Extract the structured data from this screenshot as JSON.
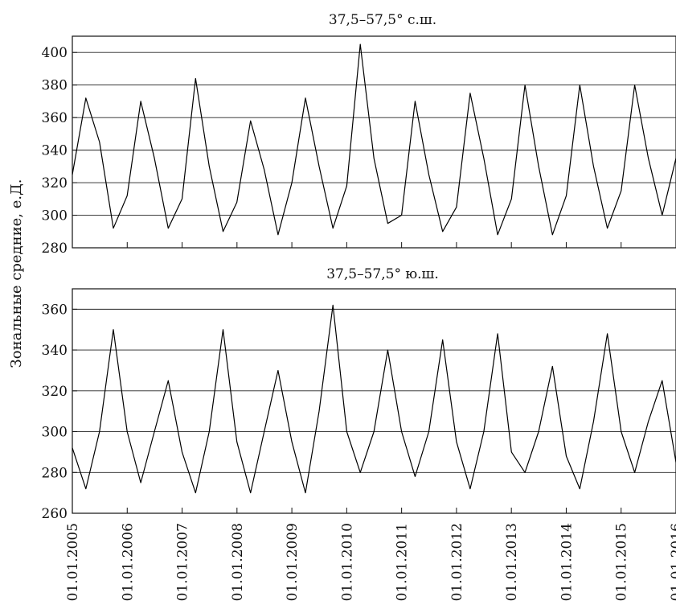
{
  "figure": {
    "ylabel": "Зональные средние, е.Д.",
    "x_tick_labels": [
      "01.01.2005",
      "01.01.2006",
      "01.01.2007",
      "01.01.2008",
      "01.01.2009",
      "01.01.2010",
      "01.01.2011",
      "01.01.2012",
      "01.01.2013",
      "01.01.2014",
      "01.01.2015",
      "01.01.2016"
    ]
  },
  "chart_data": [
    {
      "type": "line",
      "title": "37,5–57,5° с.ш.",
      "xlabel": "",
      "ylabel": "Зональные средние, е.Д.",
      "ylim": [
        280,
        410
      ],
      "xlim": [
        "2005-01-01",
        "2016-01-01"
      ],
      "y_ticks": [
        280,
        300,
        320,
        340,
        360,
        380,
        400
      ],
      "grid": "horizontal",
      "series": [
        {
          "x": [
            "2005-01-01",
            "2005-04-01",
            "2005-07-01",
            "2005-10-01",
            "2006-01-01",
            "2006-04-01",
            "2006-07-01",
            "2006-10-01",
            "2007-01-01",
            "2007-04-01",
            "2007-07-01",
            "2007-10-01",
            "2008-01-01",
            "2008-04-01",
            "2008-07-01",
            "2008-10-01",
            "2009-01-01",
            "2009-04-01",
            "2009-07-01",
            "2009-10-01",
            "2010-01-01",
            "2010-04-01",
            "2010-07-01",
            "2010-10-01",
            "2011-01-01",
            "2011-04-01",
            "2011-07-01",
            "2011-10-01",
            "2012-01-01",
            "2012-04-01",
            "2012-07-01",
            "2012-10-01",
            "2013-01-01",
            "2013-04-01",
            "2013-07-01",
            "2013-10-01",
            "2014-01-01",
            "2014-04-01",
            "2014-07-01",
            "2014-10-01",
            "2015-01-01",
            "2015-04-01",
            "2015-07-01",
            "2015-10-01",
            "2016-01-01"
          ],
          "values": [
            325,
            372,
            345,
            292,
            312,
            370,
            335,
            292,
            310,
            384,
            330,
            290,
            308,
            358,
            328,
            288,
            320,
            372,
            330,
            292,
            318,
            405,
            335,
            295,
            300,
            370,
            325,
            290,
            305,
            375,
            335,
            288,
            310,
            380,
            330,
            288,
            312,
            380,
            330,
            292,
            315,
            380,
            335,
            300,
            335
          ]
        }
      ]
    },
    {
      "type": "line",
      "title": "37,5–57,5° ю.ш.",
      "xlabel": "",
      "ylabel": "Зональные средние, е.Д.",
      "ylim": [
        260,
        370
      ],
      "xlim": [
        "2005-01-01",
        "2016-01-01"
      ],
      "y_ticks": [
        260,
        280,
        300,
        320,
        340,
        360
      ],
      "grid": "horizontal",
      "series": [
        {
          "x": [
            "2005-01-01",
            "2005-04-01",
            "2005-07-01",
            "2005-10-01",
            "2006-01-01",
            "2006-04-01",
            "2006-07-01",
            "2006-10-01",
            "2007-01-01",
            "2007-04-01",
            "2007-07-01",
            "2007-10-01",
            "2008-01-01",
            "2008-04-01",
            "2008-07-01",
            "2008-10-01",
            "2009-01-01",
            "2009-04-01",
            "2009-07-01",
            "2009-10-01",
            "2010-01-01",
            "2010-04-01",
            "2010-07-01",
            "2010-10-01",
            "2011-01-01",
            "2011-04-01",
            "2011-07-01",
            "2011-10-01",
            "2012-01-01",
            "2012-04-01",
            "2012-07-01",
            "2012-10-01",
            "2013-01-01",
            "2013-04-01",
            "2013-07-01",
            "2013-10-01",
            "2014-01-01",
            "2014-04-01",
            "2014-07-01",
            "2014-10-01",
            "2015-01-01",
            "2015-04-01",
            "2015-07-01",
            "2015-10-01",
            "2016-01-01"
          ],
          "values": [
            292,
            272,
            300,
            350,
            300,
            275,
            300,
            325,
            290,
            270,
            300,
            350,
            295,
            270,
            300,
            330,
            295,
            270,
            310,
            362,
            300,
            280,
            300,
            340,
            300,
            278,
            300,
            345,
            295,
            272,
            300,
            348,
            290,
            280,
            300,
            332,
            288,
            272,
            305,
            348,
            300,
            280,
            305,
            325,
            285
          ]
        }
      ]
    }
  ]
}
